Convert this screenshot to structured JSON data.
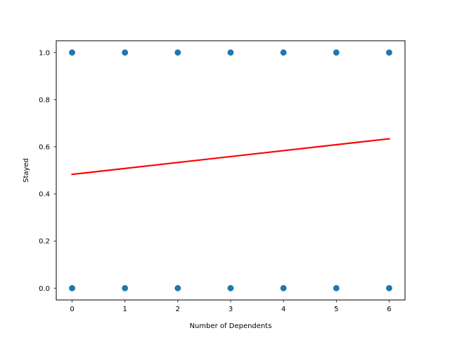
{
  "chart_data": {
    "type": "scatter",
    "title": "",
    "xlabel": "Number of Dependents",
    "ylabel": "Stayed",
    "xlim": [
      -0.3,
      6.3
    ],
    "ylim": [
      -0.05,
      1.05
    ],
    "xticks": [
      0,
      1,
      2,
      3,
      4,
      5,
      6
    ],
    "xtick_labels": [
      "0",
      "1",
      "2",
      "3",
      "4",
      "5",
      "6"
    ],
    "yticks": [
      0.0,
      0.2,
      0.4,
      0.6,
      0.8,
      1.0
    ],
    "ytick_labels": [
      "0.0",
      "0.2",
      "0.4",
      "0.6",
      "0.8",
      "1.0"
    ],
    "grid": false,
    "series": [
      {
        "kind": "scatter",
        "color": "#1f77b4",
        "points": [
          {
            "x": 0,
            "y": 0
          },
          {
            "x": 0,
            "y": 1
          },
          {
            "x": 1,
            "y": 0
          },
          {
            "x": 1,
            "y": 1
          },
          {
            "x": 2,
            "y": 0
          },
          {
            "x": 2,
            "y": 1
          },
          {
            "x": 3,
            "y": 0
          },
          {
            "x": 3,
            "y": 1
          },
          {
            "x": 4,
            "y": 0
          },
          {
            "x": 4,
            "y": 1
          },
          {
            "x": 5,
            "y": 0
          },
          {
            "x": 5,
            "y": 1
          },
          {
            "x": 6,
            "y": 0
          },
          {
            "x": 6,
            "y": 1
          }
        ]
      },
      {
        "kind": "line",
        "color": "#ff0000",
        "x": [
          0,
          6
        ],
        "y": [
          0.483,
          0.634
        ]
      }
    ]
  }
}
